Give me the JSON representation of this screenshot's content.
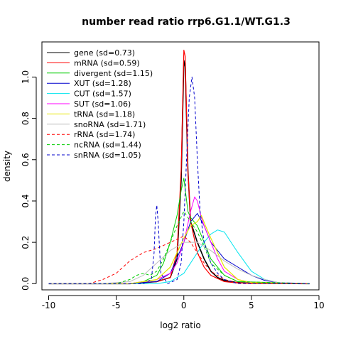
{
  "chart_data": {
    "type": "line",
    "title": "number read ratio rrp6.G1.1/WT.G1.3",
    "xlabel": "log2 ratio",
    "ylabel": "density",
    "xlim": [
      -10.5,
      10
    ],
    "ylim": [
      -0.03,
      1.17
    ],
    "xticks": [
      -10,
      -5,
      0,
      5,
      10
    ],
    "xtick_labels": [
      "-10",
      "-5",
      "0",
      "5",
      "10"
    ],
    "yticks": [
      0,
      0.2,
      0.4,
      0.6,
      0.8,
      1.0
    ],
    "ytick_labels": [
      "0.0",
      "0.2",
      "0.4",
      "0.6",
      "0.8",
      "1.0"
    ],
    "grid": false,
    "legend_position": "top-left",
    "series": [
      {
        "name": "gene (sd=0.73)",
        "color": "#000000",
        "dash": "solid",
        "width": 1.6,
        "x": [
          -10,
          -4,
          -2,
          -1,
          -0.5,
          -0.2,
          0,
          0.1,
          0.3,
          0.5,
          1,
          1.5,
          2,
          2.5,
          3,
          4,
          5,
          9.3
        ],
        "y": [
          0,
          0,
          0.01,
          0.03,
          0.12,
          0.5,
          1.08,
          1.05,
          0.55,
          0.3,
          0.2,
          0.12,
          0.06,
          0.03,
          0.015,
          0.005,
          0.002,
          0
        ]
      },
      {
        "name": "mRNA (sd=0.59)",
        "color": "#ff0000",
        "dash": "solid",
        "width": 1.2,
        "x": [
          -10,
          -4,
          -2,
          -1,
          -0.5,
          -0.2,
          0,
          0.1,
          0.3,
          0.5,
          1,
          1.5,
          2,
          3,
          4,
          9.3
        ],
        "y": [
          0,
          0,
          0.01,
          0.03,
          0.15,
          0.55,
          1.13,
          1.1,
          0.55,
          0.3,
          0.15,
          0.08,
          0.04,
          0.01,
          0.003,
          0
        ]
      },
      {
        "name": "divergent (sd=1.15)",
        "color": "#00cd00",
        "dash": "solid",
        "width": 1,
        "x": [
          -10,
          -4,
          -3,
          -2,
          -1.5,
          -1,
          -0.5,
          -0.2,
          0,
          0.3,
          0.5,
          1,
          1.5,
          2,
          3,
          4,
          9.3
        ],
        "y": [
          0,
          0,
          0.01,
          0.04,
          0.1,
          0.2,
          0.33,
          0.45,
          0.51,
          0.35,
          0.32,
          0.28,
          0.2,
          0.12,
          0.04,
          0.01,
          0
        ]
      },
      {
        "name": "XUT (sd=1.28)",
        "color": "#0000cd",
        "dash": "solid",
        "width": 1,
        "x": [
          -10,
          -4,
          -2,
          -1,
          0,
          0.5,
          1,
          1.5,
          2,
          2.5,
          3,
          4,
          5,
          6,
          7,
          9.3
        ],
        "y": [
          0,
          0,
          0.01,
          0.05,
          0.2,
          0.3,
          0.34,
          0.28,
          0.2,
          0.16,
          0.12,
          0.08,
          0.04,
          0.015,
          0.005,
          0
        ]
      },
      {
        "name": "CUT (sd=1.57)",
        "color": "#00e5ee",
        "dash": "solid",
        "width": 1,
        "x": [
          -10,
          -2,
          -1,
          0,
          0.5,
          1,
          1.5,
          2,
          2.5,
          3,
          3.5,
          4,
          5,
          6,
          7,
          8,
          9.3
        ],
        "y": [
          0,
          0,
          0.01,
          0.05,
          0.1,
          0.15,
          0.2,
          0.24,
          0.26,
          0.25,
          0.2,
          0.15,
          0.06,
          0.02,
          0.005,
          0.002,
          0
        ]
      },
      {
        "name": "SUT (sd=1.06)",
        "color": "#ff00ff",
        "dash": "solid",
        "width": 1,
        "x": [
          -10,
          -4,
          -2,
          -1,
          -0.5,
          0,
          0.5,
          0.8,
          1,
          1.3,
          1.5,
          2,
          2.5,
          3,
          4,
          5,
          9.3
        ],
        "y": [
          0,
          0,
          0.02,
          0.05,
          0.1,
          0.2,
          0.35,
          0.42,
          0.4,
          0.32,
          0.28,
          0.2,
          0.12,
          0.06,
          0.02,
          0.005,
          0
        ]
      },
      {
        "name": "tRNA (sd=1.18)",
        "color": "#e5e500",
        "dash": "solid",
        "width": 1.2,
        "x": [
          -10,
          -4,
          -2,
          -1,
          -0.5,
          0,
          0.5,
          1,
          1.3,
          1.6,
          2,
          2.5,
          3,
          4,
          5,
          9.3
        ],
        "y": [
          0,
          0,
          0.02,
          0.08,
          0.15,
          0.22,
          0.28,
          0.3,
          0.33,
          0.28,
          0.22,
          0.15,
          0.08,
          0.02,
          0.005,
          0
        ]
      },
      {
        "name": "snoRNA (sd=1.71)",
        "color": "#bebebe",
        "dash": "solid",
        "width": 1,
        "x": [
          -10,
          -6,
          -4,
          -3,
          -2,
          -1,
          0,
          1,
          2,
          3,
          4,
          5,
          6,
          7,
          9.3
        ],
        "y": [
          0,
          0,
          0.01,
          0.04,
          0.1,
          0.16,
          0.2,
          0.2,
          0.16,
          0.11,
          0.07,
          0.04,
          0.02,
          0.005,
          0
        ]
      },
      {
        "name": "rRNA (sd=1.74)",
        "color": "#ff0000",
        "dash": "4 3",
        "width": 1,
        "x": [
          -10,
          -7,
          -6,
          -5,
          -4,
          -3,
          -2,
          -1,
          0,
          0.5,
          1,
          1.5,
          2,
          3,
          4,
          5,
          9.3
        ],
        "y": [
          0,
          0,
          0.02,
          0.05,
          0.11,
          0.15,
          0.17,
          0.2,
          0.23,
          0.2,
          0.15,
          0.1,
          0.06,
          0.02,
          0.005,
          0,
          0
        ]
      },
      {
        "name": "ncRNA (sd=1.44)",
        "color": "#00cd00",
        "dash": "4 3",
        "width": 1,
        "x": [
          -10,
          -5,
          -4,
          -3.5,
          -3,
          -2.5,
          -2,
          -1.5,
          -1,
          -0.5,
          0,
          0.5,
          1,
          1.5,
          2,
          3,
          4,
          9.3
        ],
        "y": [
          0,
          0,
          0.02,
          0.04,
          0.05,
          0.04,
          0.06,
          0.12,
          0.2,
          0.28,
          0.35,
          0.3,
          0.25,
          0.18,
          0.1,
          0.04,
          0.01,
          0
        ]
      },
      {
        "name": "snRNA (sd=1.05)",
        "color": "#0000cd",
        "dash": "4 3",
        "width": 1,
        "x": [
          -10,
          -3,
          -2.4,
          -2.2,
          -2.1,
          -2,
          -1.9,
          -1.7,
          -1.2,
          -0.5,
          -0.2,
          0,
          0.2,
          0.4,
          0.6,
          0.8,
          1,
          1.2,
          1.5,
          2,
          2.5,
          3,
          4,
          9.3
        ],
        "y": [
          0,
          0,
          0.02,
          0.15,
          0.32,
          0.38,
          0.3,
          0.05,
          0,
          0.02,
          0.1,
          0.3,
          0.6,
          0.9,
          1.0,
          0.9,
          0.6,
          0.35,
          0.2,
          0.1,
          0.05,
          0.02,
          0,
          0
        ]
      }
    ]
  }
}
